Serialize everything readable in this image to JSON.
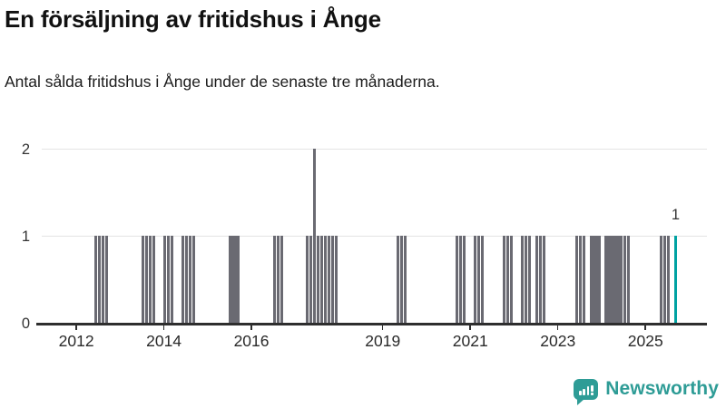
{
  "header": {
    "title": "En försäljning av fritidshus i Ånge",
    "subtitle": "Antal sålda fritidshus i Ånge under de senaste tre månaderna."
  },
  "chart_data": {
    "type": "bar",
    "title": "En försäljning av fritidshus i Ånge",
    "subtitle": "Antal sålda fritidshus i Ånge under de senaste tre månaderna.",
    "x_unit": "month",
    "ylim": [
      0,
      2
    ],
    "yticks": [
      "0",
      "1",
      "2"
    ],
    "xtick_years": [
      "2012",
      "2014",
      "2016",
      "2019",
      "2021",
      "2023",
      "2025"
    ],
    "grid": "horizontal-light",
    "legend": "none",
    "bar_color": "#6a6a72",
    "highlight_color": "#00a2a2",
    "annotation": {
      "text": "1",
      "month": "2025-09"
    },
    "points": [
      {
        "m": "2012-06",
        "v": 1
      },
      {
        "m": "2012-07",
        "v": 1
      },
      {
        "m": "2012-08",
        "v": 1
      },
      {
        "m": "2012-09",
        "v": 1
      },
      {
        "m": "2013-07",
        "v": 1
      },
      {
        "m": "2013-08",
        "v": 1
      },
      {
        "m": "2013-09",
        "v": 1
      },
      {
        "m": "2013-10",
        "v": 1
      },
      {
        "m": "2014-01",
        "v": 1
      },
      {
        "m": "2014-02",
        "v": 1
      },
      {
        "m": "2014-03",
        "v": 1
      },
      {
        "m": "2014-06",
        "v": 1
      },
      {
        "m": "2014-07",
        "v": 1
      },
      {
        "m": "2014-08",
        "v": 1
      },
      {
        "m": "2014-09",
        "v": 1
      },
      {
        "m": "2015-07",
        "v": 1
      },
      {
        "m": "2015-08",
        "v": 1
      },
      {
        "m": "2015-09",
        "v": 1
      },
      {
        "m": "2016-07",
        "v": 1
      },
      {
        "m": "2016-08",
        "v": 1
      },
      {
        "m": "2016-09",
        "v": 1
      },
      {
        "m": "2017-04",
        "v": 1
      },
      {
        "m": "2017-05",
        "v": 1
      },
      {
        "m": "2017-06",
        "v": 2
      },
      {
        "m": "2017-07",
        "v": 1
      },
      {
        "m": "2017-08",
        "v": 1
      },
      {
        "m": "2017-09",
        "v": 1
      },
      {
        "m": "2017-10",
        "v": 1
      },
      {
        "m": "2017-11",
        "v": 1
      },
      {
        "m": "2017-12",
        "v": 1
      },
      {
        "m": "2019-05",
        "v": 1
      },
      {
        "m": "2019-06",
        "v": 1
      },
      {
        "m": "2019-07",
        "v": 1
      },
      {
        "m": "2020-09",
        "v": 1
      },
      {
        "m": "2020-10",
        "v": 1
      },
      {
        "m": "2020-11",
        "v": 1
      },
      {
        "m": "2021-02",
        "v": 1
      },
      {
        "m": "2021-03",
        "v": 1
      },
      {
        "m": "2021-04",
        "v": 1
      },
      {
        "m": "2021-10",
        "v": 1
      },
      {
        "m": "2021-11",
        "v": 1
      },
      {
        "m": "2021-12",
        "v": 1
      },
      {
        "m": "2022-03",
        "v": 1
      },
      {
        "m": "2022-04",
        "v": 1
      },
      {
        "m": "2022-05",
        "v": 1
      },
      {
        "m": "2022-07",
        "v": 1
      },
      {
        "m": "2022-08",
        "v": 1
      },
      {
        "m": "2022-09",
        "v": 1
      },
      {
        "m": "2023-06",
        "v": 1
      },
      {
        "m": "2023-07",
        "v": 1
      },
      {
        "m": "2023-08",
        "v": 1
      },
      {
        "m": "2023-10",
        "v": 1
      },
      {
        "m": "2023-11",
        "v": 1
      },
      {
        "m": "2023-12",
        "v": 1
      },
      {
        "m": "2024-02",
        "v": 1
      },
      {
        "m": "2024-03",
        "v": 1
      },
      {
        "m": "2024-04",
        "v": 1
      },
      {
        "m": "2024-05",
        "v": 1
      },
      {
        "m": "2024-06",
        "v": 1
      },
      {
        "m": "2024-07",
        "v": 1
      },
      {
        "m": "2024-08",
        "v": 1
      },
      {
        "m": "2025-05",
        "v": 1
      },
      {
        "m": "2025-06",
        "v": 1
      },
      {
        "m": "2025-07",
        "v": 1
      },
      {
        "m": "2025-09",
        "v": 1,
        "highlight": true
      }
    ]
  },
  "footer": {
    "brand": "Newsworthy",
    "brand_color": "#2e9c96"
  }
}
